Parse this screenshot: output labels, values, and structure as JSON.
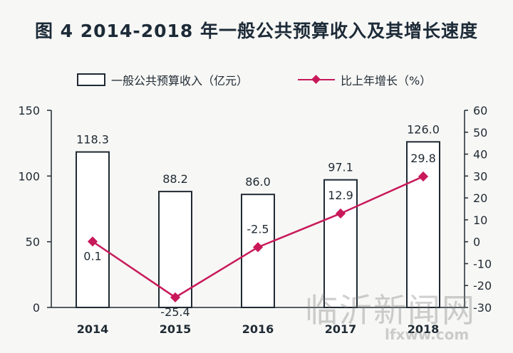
{
  "title": "图 4  2014-2018 年一般公共预算收入及其增长速度",
  "legend": {
    "bar_label": "一般公共预算收入（亿元）",
    "line_label": "比上年增长（%）"
  },
  "colors": {
    "bar_fill": "#ffffff",
    "bar_stroke": "#1f2a33",
    "line": "#c8195a",
    "axis": "#1f2a33"
  },
  "watermark": {
    "big": "临沂新闻网",
    "small": "lfxww.com"
  },
  "chart_data": {
    "type": "bar",
    "title": "图 4  2014-2018 年一般公共预算收入及其增长速度",
    "categories": [
      "2014",
      "2015",
      "2016",
      "2017",
      "2018"
    ],
    "series": [
      {
        "name": "一般公共预算收入（亿元）",
        "type": "bar",
        "axis": "left",
        "values": [
          118.3,
          88.2,
          86.0,
          97.1,
          126.0
        ]
      },
      {
        "name": "比上年增长（%）",
        "type": "line",
        "axis": "right",
        "values": [
          0.1,
          -25.4,
          -2.5,
          12.9,
          29.8
        ]
      }
    ],
    "bar_value_labels": [
      "118.3",
      "88.2",
      "86.0",
      "97.1",
      "126.0"
    ],
    "line_value_labels": [
      "0.1",
      "-25.4",
      "-2.5",
      "12.9",
      "29.8"
    ],
    "y_left": {
      "ylim": [
        0,
        150
      ],
      "ticks": [
        "0",
        "50",
        "100",
        "150"
      ]
    },
    "y_right": {
      "ylim": [
        -30,
        60
      ],
      "ticks": [
        "-30",
        "-20",
        "-10",
        "0",
        "10",
        "20",
        "30",
        "40",
        "50",
        "60"
      ]
    },
    "grid": false,
    "legend_position": "top"
  }
}
